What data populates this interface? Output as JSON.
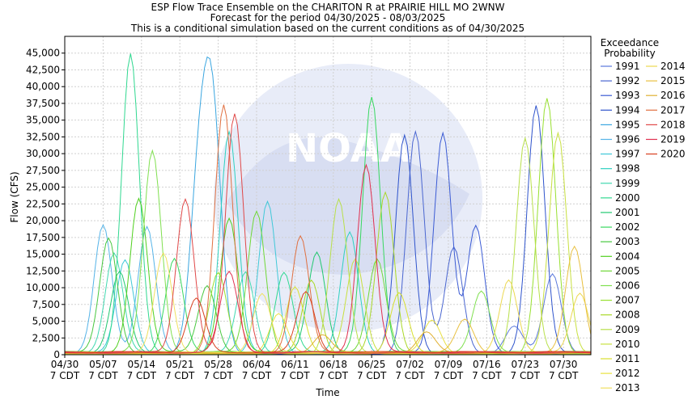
{
  "chart_data": {
    "type": "line",
    "title": "ESP Flow Trace Ensemble on the CHARITON R at PRAIRIE HILL MO 2WNW",
    "subtitle_lines": [
      "Forecast for the period 04/30/2025 - 08/03/2025",
      "This is a conditional simulation based on the current conditions as of 04/30/2025"
    ],
    "xlabel": "Time",
    "ylabel": "Flow (CFS)",
    "ylim": [
      0,
      47500
    ],
    "xlim_days": [
      0,
      96
    ],
    "grid": true,
    "watermark": "NOAA",
    "y_ticks": [
      0,
      2500,
      5000,
      7500,
      10000,
      12500,
      15000,
      17500,
      20000,
      22500,
      25000,
      27500,
      30000,
      32500,
      35000,
      37500,
      40000,
      42500,
      45000
    ],
    "y_tick_labels": [
      "0",
      "2,500",
      "5,000",
      "7,500",
      "10,000",
      "12,500",
      "15,000",
      "17,500",
      "20,000",
      "22,500",
      "25,000",
      "27,500",
      "30,000",
      "32,500",
      "35,000",
      "37,500",
      "40,000",
      "42,500",
      "45,000"
    ],
    "x_ticks": [
      {
        "day": 0,
        "date": "04/30",
        "tz": "7 CDT"
      },
      {
        "day": 7,
        "date": "05/07",
        "tz": "7 CDT"
      },
      {
        "day": 14,
        "date": "05/14",
        "tz": "7 CDT"
      },
      {
        "day": 21,
        "date": "05/21",
        "tz": "7 CDT"
      },
      {
        "day": 28,
        "date": "05/28",
        "tz": "7 CDT"
      },
      {
        "day": 35,
        "date": "06/04",
        "tz": "7 CDT"
      },
      {
        "day": 42,
        "date": "06/11",
        "tz": "7 CDT"
      },
      {
        "day": 49,
        "date": "06/18",
        "tz": "7 CDT"
      },
      {
        "day": 56,
        "date": "06/25",
        "tz": "7 CDT"
      },
      {
        "day": 63,
        "date": "07/02",
        "tz": "7 CDT"
      },
      {
        "day": 70,
        "date": "07/09",
        "tz": "7 CDT"
      },
      {
        "day": 77,
        "date": "07/16",
        "tz": "7 CDT"
      },
      {
        "day": 84,
        "date": "07/23",
        "tz": "7 CDT"
      },
      {
        "day": 91,
        "date": "07/30",
        "tz": "7 CDT"
      }
    ],
    "legend_title_lines": [
      "Exceedance",
      "Probability"
    ],
    "legend_placement": "right",
    "series": [
      {
        "name": "1991",
        "color": "#5a78dc",
        "peaks": [
          [
            82,
            4000
          ],
          [
            89,
            12000
          ]
        ]
      },
      {
        "name": "1992",
        "color": "#4a66d0",
        "peaks": [
          [
            64,
            33000
          ],
          [
            71,
            16000
          ]
        ]
      },
      {
        "name": "1993",
        "color": "#3b5bd4",
        "peaks": [
          [
            69,
            33000
          ],
          [
            75,
            19000
          ]
        ]
      },
      {
        "name": "1994",
        "color": "#2f54cc",
        "peaks": [
          [
            62,
            32500
          ],
          [
            86,
            37000
          ]
        ]
      },
      {
        "name": "1995",
        "color": "#3aa6e0",
        "peaks": [
          [
            24.5,
            25000
          ],
          [
            27,
            34000
          ]
        ]
      },
      {
        "name": "1996",
        "color": "#56b4e8",
        "peaks": [
          [
            7,
            19000
          ],
          [
            15,
            19000
          ]
        ]
      },
      {
        "name": "1997",
        "color": "#40c8d8",
        "peaks": [
          [
            11,
            14000
          ],
          [
            37,
            22500
          ]
        ]
      },
      {
        "name": "1998",
        "color": "#2ed0c0",
        "peaks": [
          [
            30,
            33000
          ],
          [
            52,
            18000
          ]
        ]
      },
      {
        "name": "1999",
        "color": "#40d8b0",
        "peaks": [
          [
            9,
            15000
          ],
          [
            33,
            12000
          ]
        ]
      },
      {
        "name": "2000",
        "color": "#30d890",
        "peaks": [
          [
            12,
            44500
          ],
          [
            40,
            12000
          ]
        ]
      },
      {
        "name": "2001",
        "color": "#20c870",
        "peaks": [
          [
            10,
            12000
          ],
          [
            46,
            15000
          ]
        ]
      },
      {
        "name": "2002",
        "color": "#38d860",
        "peaks": [
          [
            56,
            38000
          ],
          [
            20,
            14000
          ]
        ]
      },
      {
        "name": "2003",
        "color": "#48c840",
        "peaks": [
          [
            8,
            17000
          ],
          [
            26,
            10000
          ]
        ]
      },
      {
        "name": "2004",
        "color": "#50d020",
        "peaks": [
          [
            13.5,
            23000
          ],
          [
            30,
            20000
          ]
        ]
      },
      {
        "name": "2005",
        "color": "#70d838",
        "peaks": [
          [
            35,
            21000
          ],
          [
            57,
            14000
          ]
        ]
      },
      {
        "name": "2006",
        "color": "#80e050",
        "peaks": [
          [
            16,
            30000
          ],
          [
            76,
            9000
          ]
        ]
      },
      {
        "name": "2007",
        "color": "#98e030",
        "peaks": [
          [
            88,
            38000
          ],
          [
            28,
            12000
          ]
        ]
      },
      {
        "name": "2008",
        "color": "#aad828",
        "peaks": [
          [
            58.5,
            24000
          ],
          [
            45,
            11000
          ]
        ]
      },
      {
        "name": "2009",
        "color": "#b8e04a",
        "peaks": [
          [
            50,
            23000
          ],
          [
            84,
            32000
          ]
        ]
      },
      {
        "name": "2010",
        "color": "#c8e040",
        "peaks": [
          [
            90,
            33000
          ],
          [
            53,
            14000
          ]
        ]
      },
      {
        "name": "2011",
        "color": "#d8e030",
        "peaks": [
          [
            42,
            10000
          ],
          [
            61,
            9000
          ]
        ]
      },
      {
        "name": "2012",
        "color": "#e8e040",
        "peaks": [
          [
            39,
            6000
          ],
          [
            67,
            5000
          ]
        ]
      },
      {
        "name": "2013",
        "color": "#f0e060",
        "peaks": [
          [
            18,
            15000
          ],
          [
            36,
            9000
          ]
        ]
      },
      {
        "name": "2014",
        "color": "#ecd850",
        "peaks": [
          [
            81,
            11000
          ],
          [
            94,
            9000
          ]
        ]
      },
      {
        "name": "2015",
        "color": "#e8c040",
        "peaks": [
          [
            93,
            16000
          ],
          [
            73,
            5000
          ]
        ]
      },
      {
        "name": "2016",
        "color": "#e0b030",
        "peaks": [
          [
            47,
            2700
          ],
          [
            66,
            3000
          ]
        ]
      },
      {
        "name": "2017",
        "color": "#e07040",
        "peaks": [
          [
            29,
            37000
          ],
          [
            43,
            17500
          ]
        ]
      },
      {
        "name": "2018",
        "color": "#e04848",
        "peaks": [
          [
            31,
            35500
          ],
          [
            22,
            23000
          ]
        ]
      },
      {
        "name": "2019",
        "color": "#e03050",
        "peaks": [
          [
            55,
            28000
          ],
          [
            30,
            12000
          ]
        ]
      },
      {
        "name": "2020",
        "color": "#d84020",
        "peaks": [
          [
            24,
            8000
          ],
          [
            44,
            9000
          ]
        ]
      }
    ]
  }
}
